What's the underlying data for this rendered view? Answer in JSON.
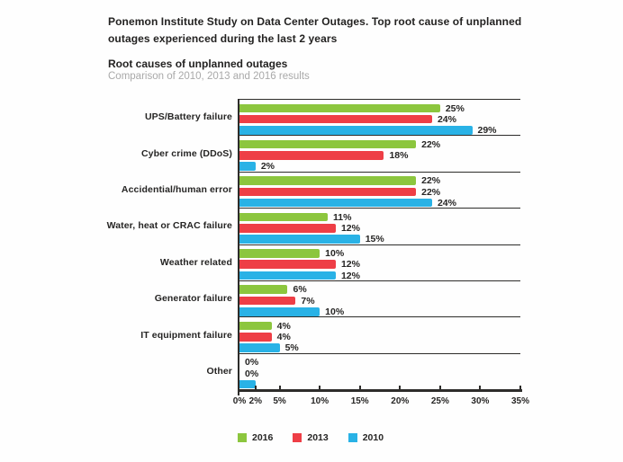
{
  "header": {
    "title": "Ponemon Institute Study on Data Center Outages. Top root cause of unplanned outages experienced during the last 2 years",
    "chart_title": "Root causes of unplanned outages",
    "chart_subtitle": "Comparison of 2010, 2013 and 2016 results"
  },
  "chart_data": {
    "type": "bar",
    "orientation": "horizontal",
    "title": "Root causes of unplanned outages",
    "subtitle": "Comparison of 2010, 2013 and 2016 results",
    "categories": [
      "UPS/Battery failure",
      "Cyber crime (DDoS)",
      "Accidential/human error",
      "Water, heat or CRAC failure",
      "Weather related",
      "Generator failure",
      "IT equipment failure",
      "Other"
    ],
    "series": [
      {
        "name": "2016",
        "color": "#8cc63e",
        "values": [
          25,
          22,
          22,
          11,
          10,
          6,
          4,
          0
        ],
        "labels": [
          "25%",
          "22%",
          "22%",
          "11%",
          "10%",
          "6%",
          "4%",
          "0%"
        ]
      },
      {
        "name": "2013",
        "color": "#ee3e46",
        "values": [
          24,
          18,
          22,
          12,
          12,
          7,
          4,
          0
        ],
        "labels": [
          "24%",
          "18%",
          "22%",
          "12%",
          "12%",
          "7%",
          "4%",
          "0%"
        ]
      },
      {
        "name": "2010",
        "color": "#29b2e6",
        "values": [
          29,
          2,
          24,
          15,
          12,
          10,
          5,
          2
        ],
        "labels": [
          "29%",
          "2%",
          "24%",
          "15%",
          "12%",
          "10%",
          "5%",
          ""
        ]
      }
    ],
    "xlim": [
      0,
      35
    ],
    "x_ticks": [
      {
        "value": 0,
        "label": "0%"
      },
      {
        "value": 2,
        "label": "2%"
      },
      {
        "value": 5,
        "label": "5%"
      },
      {
        "value": 10,
        "label": "10%"
      },
      {
        "value": 15,
        "label": "15%"
      },
      {
        "value": 20,
        "label": "20%"
      },
      {
        "value": 25,
        "label": "25%"
      },
      {
        "value": 30,
        "label": "30%"
      },
      {
        "value": 35,
        "label": "35%"
      }
    ],
    "legend": [
      {
        "label": "2016",
        "color": "#8cc63e"
      },
      {
        "label": "2013",
        "color": "#ee3e46"
      },
      {
        "label": "2010",
        "color": "#29b2e6"
      }
    ],
    "legend_position": "bottom",
    "grid": "group-separator-lines",
    "axis_color": "#2d2c2a"
  }
}
